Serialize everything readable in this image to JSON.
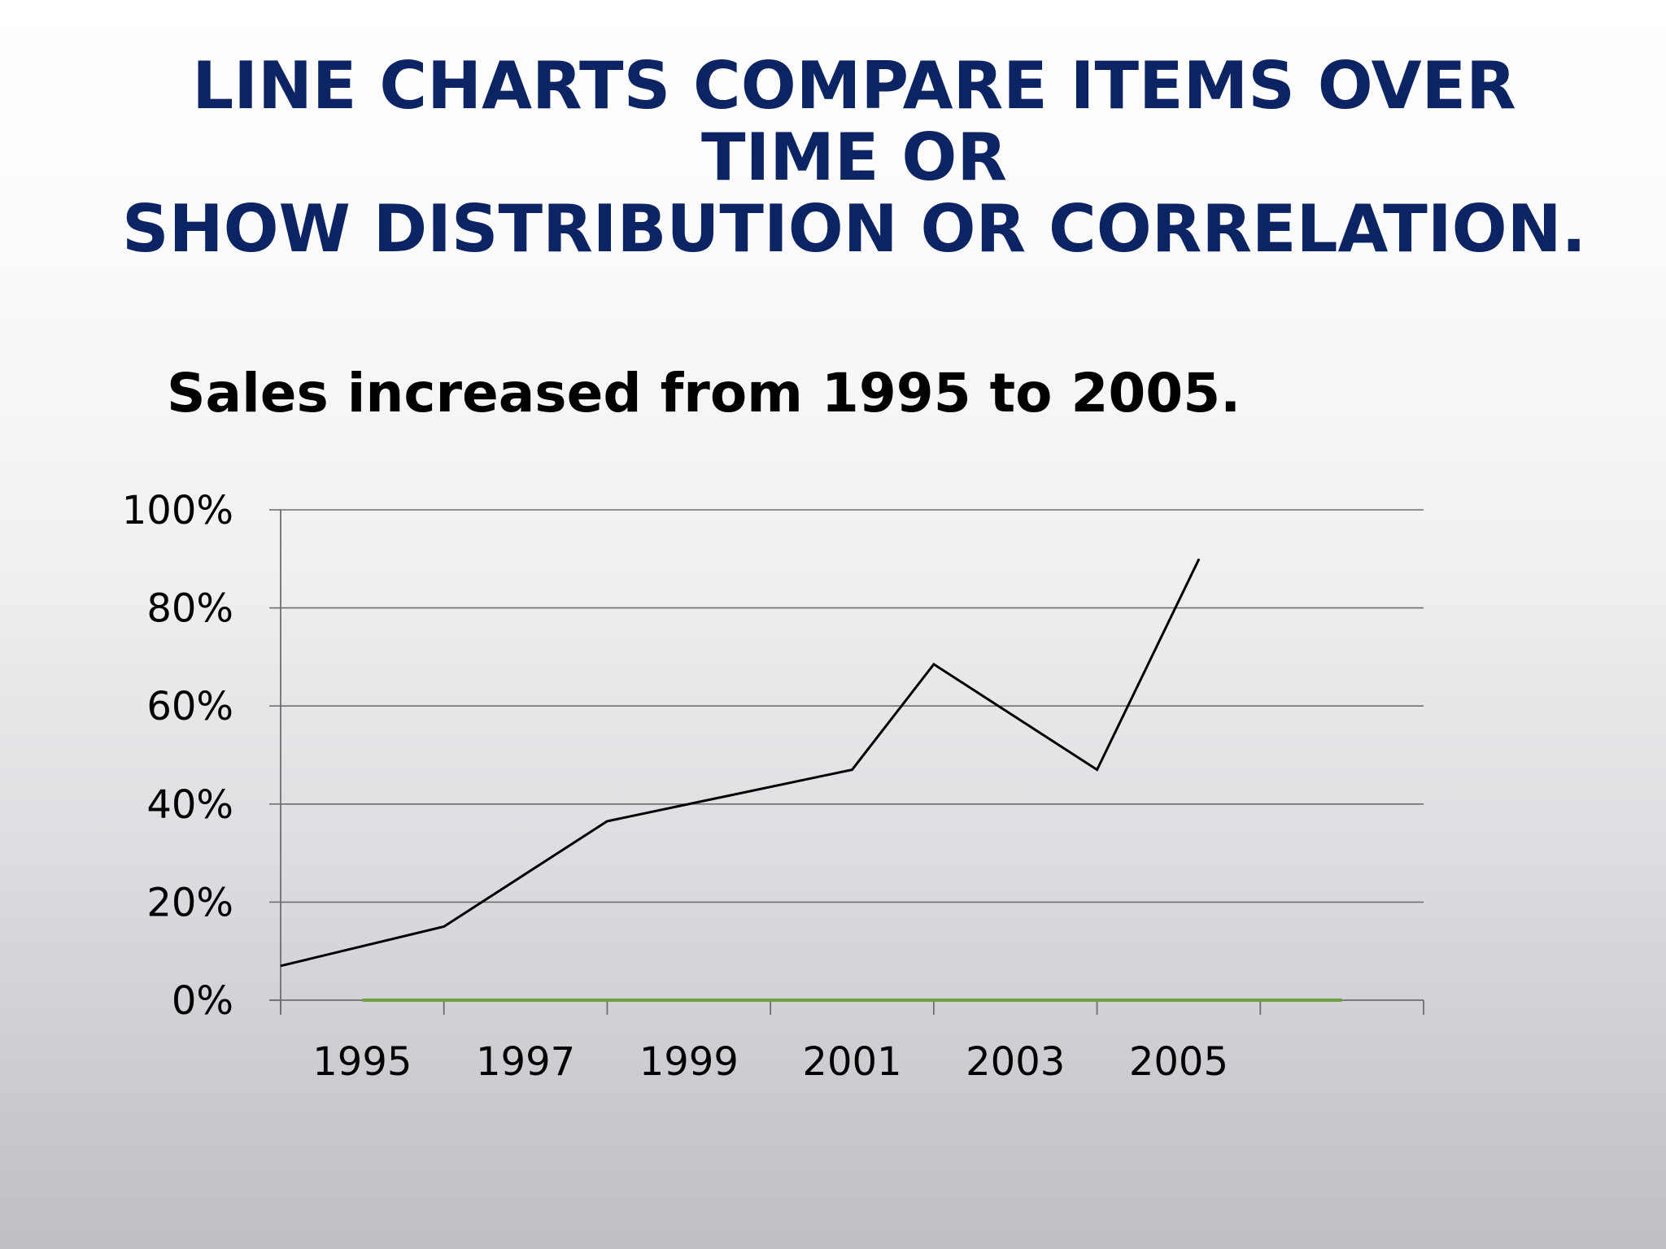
{
  "slide": {
    "title_line1": "LINE CHARTS COMPARE ITEMS OVER TIME OR",
    "title_line2": "SHOW DISTRIBUTION OR CORRELATION.",
    "title_color": "#0c2464"
  },
  "chart_data": {
    "type": "line",
    "title": "Sales increased from 1995 to 2005.",
    "xlabel": "",
    "ylabel": "",
    "ylim": [
      0,
      100
    ],
    "y_ticks": [
      "0%",
      "20%",
      "40%",
      "60%",
      "80%",
      "100%"
    ],
    "y_tick_values": [
      0,
      20,
      40,
      60,
      80,
      100
    ],
    "x_tick_labels": [
      "1995",
      "1997",
      "1999",
      "2001",
      "2003",
      "2005"
    ],
    "x_tick_years": [
      1995,
      1997,
      1999,
      2001,
      2003,
      2005
    ],
    "grid": true,
    "series": [
      {
        "color": "#000000",
        "points": [
          {
            "x": 1994.0,
            "y": 7
          },
          {
            "x": 1996.0,
            "y": 15
          },
          {
            "x": 1998.0,
            "y": 36.5
          },
          {
            "x": 2001.0,
            "y": 47
          },
          {
            "x": 2002.0,
            "y": 68.5
          },
          {
            "x": 2004.0,
            "y": 47
          },
          {
            "x": 2005.25,
            "y": 90
          }
        ]
      },
      {
        "color": "#70a040",
        "points": [
          {
            "x": 1995.0,
            "y": 0
          },
          {
            "x": 2007.0,
            "y": 0
          }
        ]
      }
    ]
  }
}
